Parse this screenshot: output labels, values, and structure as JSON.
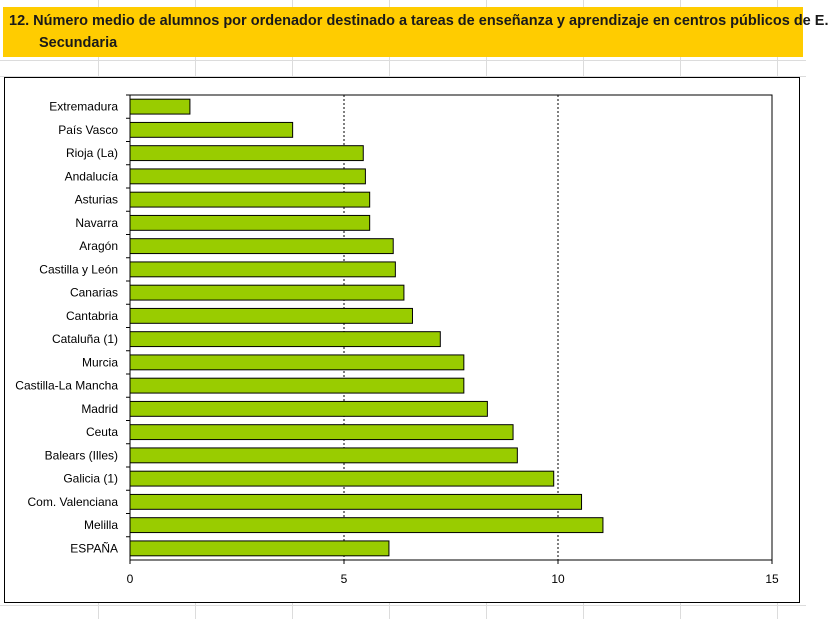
{
  "title": {
    "text": "12. Número medio de alumnos por ordenador destinado a tareas de enseñanza y aprendizaje en centros públicos de E. Secundaria"
  },
  "chart_data": {
    "type": "bar",
    "orientation": "horizontal",
    "categories": [
      "Extremadura",
      "País Vasco",
      "Rioja (La)",
      "Andalucía",
      "Asturias",
      "Navarra",
      "Aragón",
      "Castilla y León",
      "Canarias",
      "Cantabria",
      "Cataluña (1)",
      "Murcia",
      "Castilla-La Mancha",
      "Madrid",
      "Ceuta",
      "Balears (Illes)",
      "Galicia (1)",
      "Com. Valenciana",
      "Melilla",
      "ESPAÑA"
    ],
    "values": [
      1.4,
      3.8,
      5.45,
      5.5,
      5.6,
      5.6,
      6.15,
      6.2,
      6.4,
      6.6,
      7.25,
      7.8,
      7.8,
      8.35,
      8.95,
      9.05,
      9.9,
      10.55,
      11.05,
      6.05
    ],
    "xlim": [
      0,
      15
    ],
    "xticks": [
      "0",
      "5",
      "10",
      "15"
    ],
    "grid": "vertical dashed at major ticks",
    "legend": "none",
    "bar_color": "#99cc00",
    "bar_edge_color": "#000000"
  }
}
